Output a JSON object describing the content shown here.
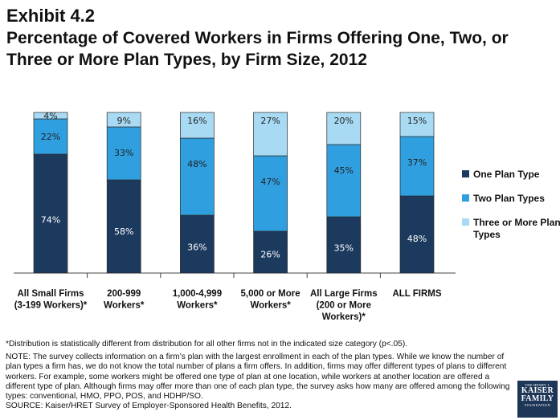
{
  "header": {
    "exhibit": "Exhibit 4.2",
    "title": "Percentage of Covered Workers in Firms Offering One, Two, or Three or More Plan Types, by Firm Size, 2012"
  },
  "colors": {
    "one_plan": "#1c3a5e",
    "two_plans": "#2f9fe0",
    "three_plus": "#a8daf3"
  },
  "chart_data": {
    "type": "bar",
    "stacked": true,
    "ylim": [
      0,
      100
    ],
    "categories": [
      [
        "All Small Firms",
        "(3-199 Workers)*"
      ],
      [
        "200-999",
        "Workers*"
      ],
      [
        "1,000-4,999",
        "Workers*"
      ],
      [
        "5,000 or More",
        "Workers*"
      ],
      [
        "All Large Firms",
        "(200 or More",
        "Workers)*"
      ],
      [
        "ALL FIRMS"
      ]
    ],
    "series": [
      {
        "name": "One Plan Type",
        "values": [
          74,
          58,
          36,
          26,
          35,
          48
        ],
        "labels": [
          "74%",
          "58%",
          "36%",
          "26%",
          "35%",
          "48%"
        ]
      },
      {
        "name": "Two Plan Types",
        "values": [
          22,
          33,
          48,
          47,
          45,
          37
        ],
        "labels": [
          "22%",
          "33%",
          "48%",
          "47%",
          "45%",
          "37%"
        ]
      },
      {
        "name": "Three or More Plan Types",
        "values": [
          4,
          9,
          16,
          27,
          20,
          15
        ],
        "labels": [
          "4%",
          "9%",
          "16%",
          "27%",
          "20%",
          "15%"
        ]
      }
    ],
    "legend_position": "right",
    "legend_labels": [
      [
        "One Plan Type"
      ],
      [
        "Two Plan Types"
      ],
      [
        "Three or More Plan",
        "Types"
      ]
    ]
  },
  "footnotes": {
    "significance": "*Distribution is statistically different from distribution for all other firms not in the indicated size category (p<.05).",
    "note": "NOTE:  The survey collects information on a firm’s plan with the largest enrollment in each of the plan types. While we know the number of plan types a firm has, we do not know the total number of plans a firm offers. In addition, firms may offer different types of plans to different workers. For example, some workers might be offered one type of plan at one location, while workers at another location are offered a different type of plan.  Although firms may offer more than one of each plan type, the survey asks how many are offered among the following types: conventional, HMO, PPO, POS, and HDHP/SO.",
    "source": "SOURCE: Kaiser/HRET Survey of Employer-Sponsored Health Benefits, 2012."
  },
  "logo": {
    "line1": "THE HENRY J.",
    "line2a": "KAISER",
    "line2b": "FAMILY",
    "line3": "FOUNDATION"
  }
}
